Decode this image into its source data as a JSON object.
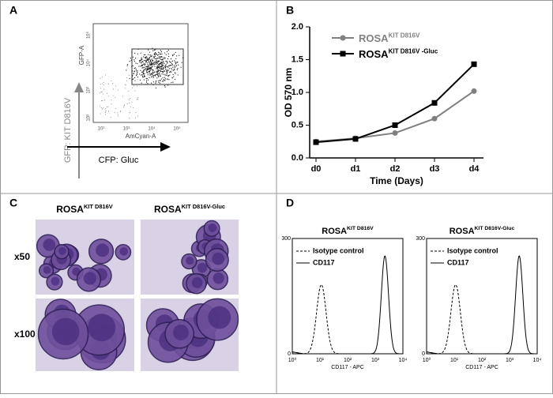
{
  "panels": {
    "a": "A",
    "b": "B",
    "c": "C",
    "d": "D"
  },
  "panel_a": {
    "y_label": "GFP: KIT D816V",
    "x_label": "CFP: Gluc",
    "plot_y_label": "GFP-A",
    "plot_x_label": "AmCyan-A",
    "x_ticks": [
      "10²",
      "10³",
      "10⁴",
      "10⁵"
    ],
    "y_ticks": [
      "10⁵",
      "10⁴",
      "10³",
      "10²"
    ]
  },
  "chart_data": {
    "type": "line",
    "x_label": "Time (Days)",
    "y_label": "OD 570 nm",
    "categories": [
      "d0",
      "d1",
      "d2",
      "d3",
      "d4"
    ],
    "series": [
      {
        "name": "ROSA",
        "name_sup": "KIT D816V",
        "color": "#808080",
        "marker": "circle",
        "values": [
          0.25,
          0.3,
          0.38,
          0.6,
          1.02
        ]
      },
      {
        "name": "ROSA",
        "name_sup": "KIT D816V -Gluc",
        "color": "#000000",
        "marker": "square",
        "values": [
          0.24,
          0.29,
          0.5,
          0.84,
          1.43
        ]
      }
    ],
    "ylim": [
      0,
      2
    ],
    "yticks": [
      {
        "value": 0,
        "label": "0.0"
      },
      {
        "value": 0.5,
        "label": "0.5"
      },
      {
        "value": 1,
        "label": "1.0"
      },
      {
        "value": 1.5,
        "label": "1.5"
      },
      {
        "value": 2,
        "label": "2.0"
      }
    ]
  },
  "panel_c": {
    "columns": [
      {
        "name": "ROSA",
        "sup": "KIT D816V"
      },
      {
        "name": "ROSA",
        "sup": "KIT D816V-Gluc"
      }
    ],
    "rows": [
      "x50",
      "x100"
    ]
  },
  "panel_d": {
    "plots": [
      {
        "title": "ROSA",
        "sup": "KIT D816V"
      },
      {
        "title": "ROSA",
        "sup": "KIT D816V-Gluc"
      }
    ],
    "legend": [
      "Isotype control",
      "CD117"
    ],
    "x_label": "CD117 - APC",
    "x_ticks": [
      "10⁰",
      "10¹",
      "10²",
      "10³",
      "10⁴"
    ],
    "y_ticks": [
      300,
      0
    ]
  }
}
